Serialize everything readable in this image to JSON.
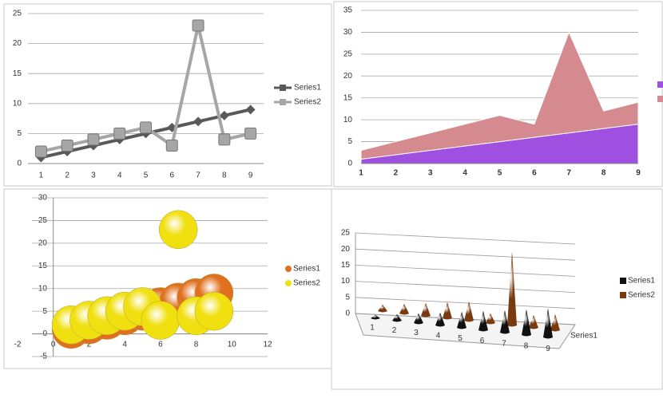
{
  "chart_data": [
    {
      "type": "line",
      "categories": [
        1,
        2,
        3,
        4,
        5,
        6,
        7,
        8,
        9
      ],
      "series": [
        {
          "name": "Series1",
          "color": "#595959",
          "values": [
            1,
            2,
            3,
            4,
            5,
            6,
            7,
            8,
            9
          ]
        },
        {
          "name": "Series2",
          "color": "#a6a6a6",
          "values": [
            2,
            3,
            4,
            5,
            6,
            3,
            23,
            4,
            5
          ]
        }
      ],
      "ylim": [
        0,
        25
      ],
      "yticks": [
        0,
        5,
        10,
        15,
        20,
        25
      ],
      "grid": true,
      "legend": "right"
    },
    {
      "type": "area",
      "stacked": true,
      "categories": [
        1,
        2,
        3,
        4,
        5,
        6,
        7,
        8,
        9
      ],
      "series": [
        {
          "color": "#a050e0",
          "values": [
            1,
            2,
            3,
            4,
            5,
            6,
            7,
            8,
            9
          ]
        },
        {
          "color": "#d48a8e",
          "values": [
            2,
            3,
            4,
            5,
            6,
            3,
            23,
            4,
            5
          ]
        }
      ],
      "ylim": [
        0,
        35
      ],
      "yticks": [
        0,
        5,
        10,
        15,
        20,
        25,
        30,
        35
      ],
      "grid": true,
      "legend": "right"
    },
    {
      "type": "bubble",
      "series": [
        {
          "name": "Series1",
          "color": "#e07020",
          "x": [
            1,
            2,
            3,
            4,
            5,
            6,
            7,
            8,
            9
          ],
          "values": [
            1,
            2,
            3,
            4,
            5,
            6,
            7,
            8,
            9
          ]
        },
        {
          "name": "Series2",
          "color": "#f0e010",
          "x": [
            1,
            2,
            3,
            4,
            5,
            6,
            7,
            8,
            9
          ],
          "values": [
            2,
            3,
            4,
            5,
            6,
            3,
            23,
            4,
            5
          ]
        }
      ],
      "xlim": [
        -2,
        12
      ],
      "xticks": [
        -2,
        0,
        2,
        4,
        6,
        8,
        10,
        12
      ],
      "ylim": [
        -5,
        30
      ],
      "yticks": [
        -5,
        0,
        5,
        10,
        15,
        20,
        25,
        30
      ],
      "grid": true,
      "legend": "right"
    },
    {
      "type": "cone3d",
      "categories": [
        1,
        2,
        3,
        4,
        5,
        6,
        7,
        8,
        9
      ],
      "depth_label": "Series1",
      "series": [
        {
          "name": "Series1",
          "color": "#111111",
          "values": [
            1,
            2,
            3,
            4,
            5,
            6,
            7,
            8,
            9
          ]
        },
        {
          "name": "Series2",
          "color": "#7a3a10",
          "values": [
            2,
            3,
            4,
            5,
            6,
            3,
            23,
            4,
            5
          ]
        }
      ],
      "ylim": [
        0,
        25
      ],
      "yticks": [
        0,
        5,
        10,
        15,
        20,
        25
      ],
      "grid": true,
      "legend": "right"
    }
  ]
}
